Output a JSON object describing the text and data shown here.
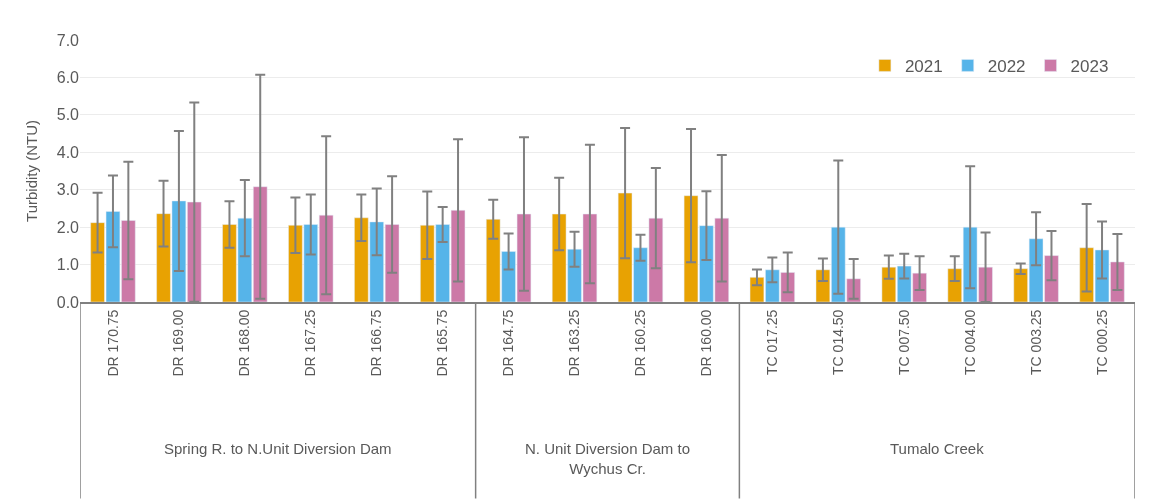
{
  "chart_data": {
    "type": "bar",
    "ylabel": "Turbidity (NTU)",
    "categories": [
      "DR 170.75",
      "DR 169.00",
      "DR 168.00",
      "DR 167.25",
      "DR 166.75",
      "DR 165.75",
      "DR 164.75",
      "DR 163.25",
      "DR 160.25",
      "DR 160.00",
      "TC 017.25",
      "TC 014.50",
      "TC 007.50",
      "TC 004.00",
      "TC 003.25",
      "TC 000.25"
    ],
    "series": [
      {
        "name": "2021",
        "color": "#e8a202",
        "values": [
          2.12,
          2.36,
          2.07,
          2.05,
          2.25,
          2.05,
          2.21,
          2.35,
          2.91,
          2.84,
          0.66,
          0.86,
          0.93,
          0.89,
          0.89,
          1.45
        ],
        "errors": [
          0.8,
          0.88,
          0.62,
          0.74,
          0.62,
          0.9,
          0.52,
          0.97,
          1.74,
          1.78,
          0.21,
          0.3,
          0.31,
          0.33,
          0.14,
          1.17
        ]
      },
      {
        "name": "2022",
        "color": "#56b4e9",
        "values": [
          2.42,
          2.7,
          2.24,
          2.07,
          2.14,
          2.07,
          1.35,
          1.41,
          1.45,
          2.04,
          0.86,
          2.0,
          0.96,
          2.0,
          1.69,
          1.39
        ],
        "errors": [
          0.96,
          1.87,
          1.02,
          0.8,
          0.89,
          0.47,
          0.48,
          0.47,
          0.35,
          0.92,
          0.33,
          1.78,
          0.33,
          1.63,
          0.71,
          0.76
        ]
      },
      {
        "name": "2023",
        "color": "#cc79a7",
        "values": [
          2.18,
          2.67,
          3.08,
          2.32,
          2.07,
          2.45,
          2.35,
          2.35,
          2.24,
          2.24,
          0.79,
          0.62,
          0.77,
          0.93,
          1.24,
          1.07
        ],
        "errors": [
          1.57,
          2.66,
          2.99,
          2.11,
          1.29,
          1.9,
          2.05,
          1.85,
          1.34,
          1.69,
          0.53,
          0.53,
          0.45,
          0.93,
          0.66,
          0.75
        ]
      }
    ],
    "annotations": [
      "Spring R. to N.Unit Diversion Dam",
      "N. Unit Diversion Dam to Wychus Cr.",
      "Tumalo Creek"
    ],
    "ylim": [
      0,
      7
    ],
    "yticks": [
      {
        "value": 0,
        "label": "0.0"
      },
      {
        "value": 1,
        "label": "1.0"
      },
      {
        "value": 2,
        "label": "2.0"
      },
      {
        "value": 3,
        "label": "3.0"
      },
      {
        "value": 4,
        "label": "4.0"
      },
      {
        "value": 5,
        "label": "5.0"
      },
      {
        "value": 6,
        "label": "6.0"
      },
      {
        "value": 7,
        "label": "7.0"
      }
    ],
    "grid": "y",
    "legend": "top right"
  }
}
